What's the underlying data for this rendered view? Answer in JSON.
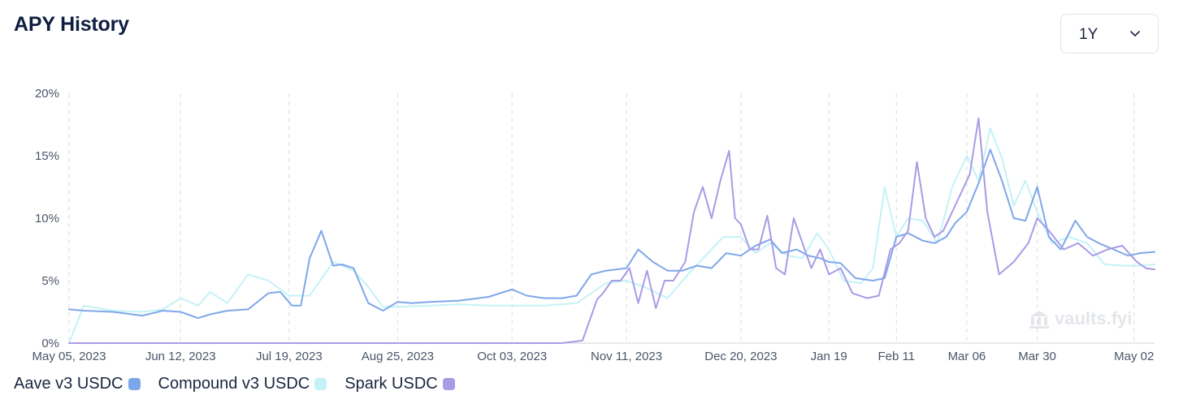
{
  "title": "APY History",
  "range": {
    "selected": "1Y"
  },
  "watermark": "vaults.fyi",
  "colors": {
    "aave": "#7ea7ea",
    "compound": "#c4f2f6",
    "spark": "#a99be6",
    "grid": "#d7dbe0"
  },
  "chart_data": {
    "type": "line",
    "x_type": "date",
    "xlim": [
      "2023-05-05",
      "2024-05-09"
    ],
    "ylim": [
      0,
      20
    ],
    "y_ticks": [
      0,
      5,
      10,
      15,
      20
    ],
    "y_tick_labels": [
      "0%",
      "5%",
      "10%",
      "15%",
      "20%"
    ],
    "x_ticks": [
      {
        "date": "2023-05-05",
        "label": "May 05, 2023"
      },
      {
        "date": "2023-06-12",
        "label": "Jun 12, 2023"
      },
      {
        "date": "2023-07-19",
        "label": "Jul 19, 2023"
      },
      {
        "date": "2023-08-25",
        "label": "Aug 25, 2023"
      },
      {
        "date": "2023-10-03",
        "label": "Oct 03, 2023"
      },
      {
        "date": "2023-11-11",
        "label": "Nov 11, 2023"
      },
      {
        "date": "2023-12-20",
        "label": "Dec 20, 2023"
      },
      {
        "date": "2024-01-19",
        "label": "Jan 19"
      },
      {
        "date": "2024-02-11",
        "label": "Feb 11"
      },
      {
        "date": "2024-03-06",
        "label": "Mar 06"
      },
      {
        "date": "2024-03-30",
        "label": "Mar 30"
      },
      {
        "date": "2024-05-02",
        "label": "May 02"
      }
    ],
    "grid": "vertical-dashed",
    "legend": "bottom-left",
    "series": [
      {
        "name": "Aave v3 USDC",
        "color": "#7ea7ea",
        "x": [
          "2023-05-05",
          "2023-05-10",
          "2023-05-20",
          "2023-05-30",
          "2023-06-06",
          "2023-06-12",
          "2023-06-18",
          "2023-06-22",
          "2023-06-28",
          "2023-07-05",
          "2023-07-12",
          "2023-07-16",
          "2023-07-20",
          "2023-07-23",
          "2023-07-26",
          "2023-07-30",
          "2023-08-03",
          "2023-08-06",
          "2023-08-10",
          "2023-08-15",
          "2023-08-20",
          "2023-08-25",
          "2023-08-30",
          "2023-09-05",
          "2023-09-15",
          "2023-09-25",
          "2023-10-03",
          "2023-10-08",
          "2023-10-14",
          "2023-10-20",
          "2023-10-25",
          "2023-10-30",
          "2023-11-04",
          "2023-11-11",
          "2023-11-15",
          "2023-11-20",
          "2023-11-25",
          "2023-11-30",
          "2023-12-05",
          "2023-12-10",
          "2023-12-15",
          "2023-12-20",
          "2023-12-25",
          "2023-12-30",
          "2024-01-03",
          "2024-01-08",
          "2024-01-12",
          "2024-01-16",
          "2024-01-19",
          "2024-01-23",
          "2024-01-28",
          "2024-02-03",
          "2024-02-07",
          "2024-02-11",
          "2024-02-15",
          "2024-02-20",
          "2024-02-24",
          "2024-02-28",
          "2024-03-02",
          "2024-03-06",
          "2024-03-10",
          "2024-03-14",
          "2024-03-18",
          "2024-03-22",
          "2024-03-26",
          "2024-03-30",
          "2024-04-03",
          "2024-04-07",
          "2024-04-12",
          "2024-04-16",
          "2024-04-20",
          "2024-04-25",
          "2024-04-30",
          "2024-05-04",
          "2024-05-09"
        ],
        "y": [
          2.7,
          2.6,
          2.5,
          2.2,
          2.6,
          2.5,
          2.0,
          2.3,
          2.6,
          2.7,
          4.0,
          4.1,
          3.0,
          3.0,
          6.8,
          9.0,
          6.2,
          6.3,
          6.0,
          3.2,
          2.6,
          3.3,
          3.2,
          3.3,
          3.4,
          3.7,
          4.3,
          3.8,
          3.6,
          3.6,
          3.8,
          5.5,
          5.8,
          6.0,
          7.5,
          6.5,
          5.8,
          5.8,
          6.2,
          6.0,
          7.2,
          7.0,
          7.8,
          8.3,
          7.2,
          7.5,
          7.0,
          6.8,
          6.5,
          6.4,
          5.2,
          5.0,
          5.2,
          8.5,
          8.8,
          8.2,
          8.0,
          8.5,
          9.6,
          10.5,
          12.8,
          15.5,
          13.0,
          10.0,
          9.8,
          12.5,
          8.5,
          7.5,
          9.8,
          8.5,
          8.0,
          7.5,
          7.0,
          7.2,
          7.3
        ]
      },
      {
        "name": "Compound v3 USDC",
        "color": "#c4f2f6",
        "x": [
          "2023-05-05",
          "2023-05-10",
          "2023-05-20",
          "2023-05-30",
          "2023-06-06",
          "2023-06-12",
          "2023-06-18",
          "2023-06-22",
          "2023-06-28",
          "2023-07-05",
          "2023-07-12",
          "2023-07-19",
          "2023-07-26",
          "2023-08-03",
          "2023-08-10",
          "2023-08-15",
          "2023-08-20",
          "2023-08-25",
          "2023-09-05",
          "2023-09-15",
          "2023-09-25",
          "2023-10-03",
          "2023-10-14",
          "2023-10-25",
          "2023-11-04",
          "2023-11-11",
          "2023-11-18",
          "2023-11-25",
          "2023-12-02",
          "2023-12-08",
          "2023-12-14",
          "2023-12-20",
          "2023-12-25",
          "2023-12-30",
          "2024-01-05",
          "2024-01-10",
          "2024-01-15",
          "2024-01-19",
          "2024-01-24",
          "2024-01-30",
          "2024-02-03",
          "2024-02-07",
          "2024-02-11",
          "2024-02-15",
          "2024-02-20",
          "2024-02-25",
          "2024-03-01",
          "2024-03-06",
          "2024-03-10",
          "2024-03-14",
          "2024-03-18",
          "2024-03-22",
          "2024-03-26",
          "2024-03-30",
          "2024-04-04",
          "2024-04-10",
          "2024-04-16",
          "2024-04-22",
          "2024-04-28",
          "2024-05-04",
          "2024-05-09"
        ],
        "y": [
          0.0,
          3.0,
          2.6,
          2.5,
          2.7,
          3.6,
          3.0,
          4.1,
          3.2,
          5.5,
          5.0,
          3.8,
          3.8,
          6.5,
          5.8,
          4.5,
          2.9,
          2.9,
          3.0,
          3.1,
          3.0,
          3.0,
          3.0,
          3.2,
          4.8,
          5.0,
          4.4,
          3.6,
          5.5,
          7.0,
          8.5,
          8.5,
          7.2,
          8.0,
          7.0,
          6.8,
          8.8,
          7.5,
          5.0,
          4.8,
          6.0,
          12.5,
          8.5,
          10.0,
          9.8,
          8.0,
          12.5,
          15.0,
          13.0,
          17.2,
          14.8,
          11.0,
          13.0,
          10.5,
          8.0,
          8.5,
          8.0,
          6.3,
          6.2,
          6.2,
          6.3
        ]
      },
      {
        "name": "Spark USDC",
        "color": "#a99be6",
        "x": [
          "2023-05-05",
          "2023-08-25",
          "2023-10-20",
          "2023-10-27",
          "2023-11-01",
          "2023-11-03",
          "2023-11-06",
          "2023-11-09",
          "2023-11-12",
          "2023-11-15",
          "2023-11-18",
          "2023-11-21",
          "2023-11-24",
          "2023-11-27",
          "2023-12-01",
          "2023-12-04",
          "2023-12-07",
          "2023-12-10",
          "2023-12-13",
          "2023-12-16",
          "2023-12-18",
          "2023-12-20",
          "2023-12-23",
          "2023-12-26",
          "2023-12-29",
          "2024-01-01",
          "2024-01-04",
          "2024-01-07",
          "2024-01-10",
          "2024-01-13",
          "2024-01-16",
          "2024-01-19",
          "2024-01-23",
          "2024-01-27",
          "2024-02-01",
          "2024-02-05",
          "2024-02-09",
          "2024-02-12",
          "2024-02-15",
          "2024-02-18",
          "2024-02-21",
          "2024-02-24",
          "2024-02-27",
          "2024-03-01",
          "2024-03-04",
          "2024-03-07",
          "2024-03-10",
          "2024-03-13",
          "2024-03-17",
          "2024-03-22",
          "2024-03-27",
          "2024-03-30",
          "2024-04-03",
          "2024-04-08",
          "2024-04-13",
          "2024-04-18",
          "2024-04-23",
          "2024-04-28",
          "2024-05-03",
          "2024-05-06",
          "2024-05-09"
        ],
        "y": [
          0.0,
          0.0,
          0.0,
          0.2,
          3.5,
          4.0,
          5.0,
          5.0,
          6.0,
          3.2,
          5.8,
          2.8,
          5.0,
          5.0,
          6.5,
          10.5,
          12.5,
          10.0,
          13.0,
          15.4,
          10.0,
          9.5,
          7.5,
          7.5,
          10.2,
          6.0,
          5.5,
          10.0,
          8.0,
          6.0,
          7.5,
          5.5,
          6.0,
          4.0,
          3.6,
          3.8,
          7.5,
          8.0,
          9.0,
          14.5,
          10.0,
          8.5,
          9.0,
          10.5,
          12.0,
          13.5,
          18.0,
          10.5,
          5.5,
          6.5,
          8.0,
          10.0,
          9.0,
          7.5,
          8.0,
          7.0,
          7.5,
          7.8,
          6.5,
          6.0,
          5.9
        ]
      }
    ]
  }
}
